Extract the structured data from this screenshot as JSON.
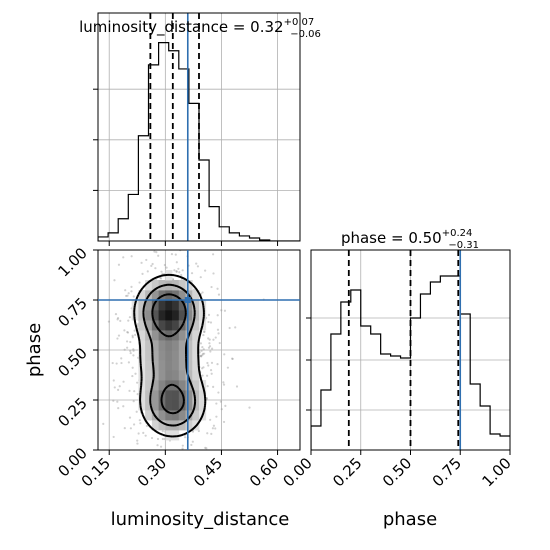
{
  "chart_data": [
    {
      "type": "histogram",
      "panel": "top-left",
      "parameter": "luminosity_distance",
      "title": {
        "name": "luminosity_distance",
        "median": "0.32",
        "plus": "+0.07",
        "minus": "−0.06"
      },
      "xlim": [
        0.12,
        0.66
      ],
      "ylim": [
        0,
        1.0
      ],
      "bin_edges": [
        0.12,
        0.147,
        0.174,
        0.201,
        0.228,
        0.255,
        0.282,
        0.309,
        0.336,
        0.363,
        0.39,
        0.417,
        0.444,
        0.471,
        0.498,
        0.525,
        0.552,
        0.579,
        0.606,
        0.633,
        0.66
      ],
      "counts": [
        0.02,
        0.04,
        0.11,
        0.23,
        0.52,
        0.87,
        0.98,
        0.94,
        0.85,
        0.68,
        0.4,
        0.17,
        0.07,
        0.04,
        0.025,
        0.015,
        0.005,
        0.0,
        0.0,
        0.0
      ],
      "quantile_lines": [
        0.26,
        0.32,
        0.39
      ],
      "truth": 0.36,
      "grid": true
    },
    {
      "type": "heatmap",
      "panel": "bottom-left",
      "xlabel": "luminosity_distance",
      "ylabel": "phase",
      "xlim": [
        0.12,
        0.66
      ],
      "ylim": [
        0.0,
        1.0
      ],
      "xticks": [
        "0.15",
        "0.30",
        "0.45",
        "0.60"
      ],
      "yticks": [
        "0.00",
        "0.25",
        "0.50",
        "0.75",
        "1.00"
      ],
      "truth": {
        "x": 0.36,
        "y": 0.75
      },
      "density_peaks": [
        {
          "x": 0.31,
          "y": 0.69,
          "weight": 1.0
        },
        {
          "x": 0.32,
          "y": 0.24,
          "weight": 0.75
        },
        {
          "x": 0.31,
          "y": 0.46,
          "weight": 0.45
        }
      ],
      "grid": true
    },
    {
      "type": "histogram",
      "panel": "bottom-right",
      "parameter": "phase",
      "xlabel": "phase",
      "title": {
        "name": "phase",
        "median": "0.50",
        "plus": "+0.24",
        "minus": "−0.31"
      },
      "xlim": [
        0.0,
        1.0
      ],
      "ylim": [
        0,
        1.0
      ],
      "xticks": [
        "0.00",
        "0.25",
        "0.50",
        "0.75",
        "1.00"
      ],
      "bin_edges": [
        0.0,
        0.05,
        0.1,
        0.15,
        0.2,
        0.25,
        0.3,
        0.35,
        0.4,
        0.45,
        0.5,
        0.55,
        0.6,
        0.65,
        0.7,
        0.75,
        0.8,
        0.85,
        0.9,
        0.95,
        1.0
      ],
      "counts": [
        0.12,
        0.3,
        0.58,
        0.74,
        0.8,
        0.62,
        0.58,
        0.48,
        0.47,
        0.46,
        0.66,
        0.78,
        0.84,
        0.87,
        0.87,
        0.68,
        0.33,
        0.22,
        0.08,
        0.07
      ],
      "quantile_lines": [
        0.19,
        0.5,
        0.74
      ],
      "truth": 0.75,
      "grid": true
    }
  ]
}
